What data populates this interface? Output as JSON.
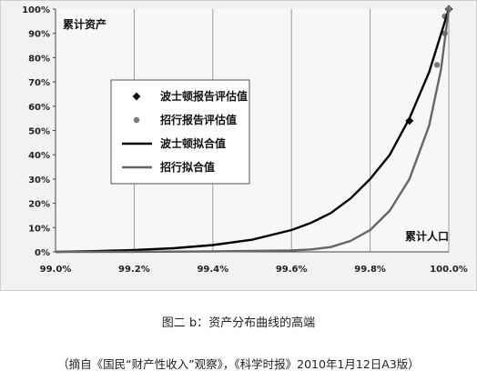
{
  "chart_data": {
    "type": "line",
    "title": "",
    "corner_label_y": "累计资产",
    "corner_label_x": "累计人口",
    "xlim": [
      99.0,
      100.0
    ],
    "ylim": [
      0,
      100
    ],
    "x_ticks": [
      "99.0%",
      "99.2%",
      "99.4%",
      "99.6%",
      "99.8%",
      "100.0%"
    ],
    "x_tick_values": [
      99.0,
      99.2,
      99.4,
      99.6,
      99.8,
      100.0
    ],
    "y_ticks": [
      "0%",
      "10%",
      "20%",
      "30%",
      "40%",
      "50%",
      "60%",
      "70%",
      "80%",
      "90%",
      "100%"
    ],
    "y_tick_values": [
      0,
      10,
      20,
      30,
      40,
      50,
      60,
      70,
      80,
      90,
      100
    ],
    "grid": "vertical",
    "legend_position": "center-left",
    "series": [
      {
        "name": "波士顿报告评估值",
        "kind": "markers",
        "marker": "diamond",
        "color": "#111111",
        "points": [
          [
            99.9,
            54
          ],
          [
            100.0,
            100
          ]
        ]
      },
      {
        "name": "招行报告评估值",
        "kind": "markers",
        "marker": "circle",
        "color": "#777777",
        "points": [
          [
            99.97,
            77
          ],
          [
            99.99,
            90
          ],
          [
            99.99,
            97
          ],
          [
            100.0,
            100
          ]
        ]
      },
      {
        "name": "波士顿拟合值",
        "kind": "line",
        "color": "#000000",
        "points": [
          [
            99.0,
            0
          ],
          [
            99.1,
            0.3
          ],
          [
            99.2,
            0.8
          ],
          [
            99.3,
            1.5
          ],
          [
            99.4,
            2.8
          ],
          [
            99.5,
            5
          ],
          [
            99.6,
            9
          ],
          [
            99.65,
            12
          ],
          [
            99.7,
            16
          ],
          [
            99.75,
            22
          ],
          [
            99.8,
            30
          ],
          [
            99.85,
            40
          ],
          [
            99.9,
            55
          ],
          [
            99.95,
            74
          ],
          [
            100.0,
            100
          ]
        ]
      },
      {
        "name": "招行拟合值",
        "kind": "line",
        "color": "#666666",
        "points": [
          [
            99.0,
            0
          ],
          [
            99.2,
            0.05
          ],
          [
            99.4,
            0.2
          ],
          [
            99.6,
            0.6
          ],
          [
            99.65,
            1
          ],
          [
            99.7,
            2
          ],
          [
            99.75,
            4.5
          ],
          [
            99.8,
            9
          ],
          [
            99.85,
            17
          ],
          [
            99.9,
            30
          ],
          [
            99.95,
            52
          ],
          [
            99.98,
            75
          ],
          [
            100.0,
            100
          ]
        ]
      }
    ]
  },
  "caption": {
    "main": "图二 b：资产分布曲线的高端",
    "source": "（摘自《国民“财产性收入”观察》，《科学时报》2010年1月12日A3版）"
  }
}
